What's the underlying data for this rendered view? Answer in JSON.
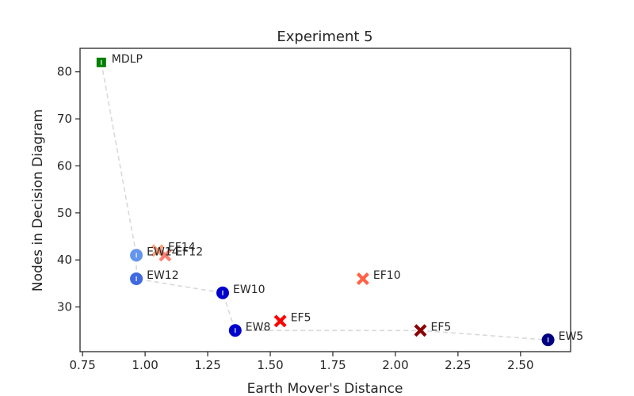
{
  "chart_data": {
    "type": "scatter",
    "title": "Experiment 5",
    "xlabel": "Earth Mover's Distance",
    "ylabel": "Nodes in Decision Diagram",
    "xlim": [
      0.74,
      2.7
    ],
    "ylim": [
      20.5,
      85
    ],
    "xticks": [
      "0.75",
      "1.00",
      "1.25",
      "1.50",
      "1.75",
      "2.00",
      "2.25",
      "2.50"
    ],
    "xtick_values": [
      0.75,
      1.0,
      1.25,
      1.5,
      1.75,
      2.0,
      2.25,
      2.5
    ],
    "yticks": [
      "30",
      "40",
      "50",
      "60",
      "70",
      "80"
    ],
    "ytick_values": [
      30,
      40,
      50,
      60,
      70,
      80
    ],
    "grid": false,
    "frontier_color": "#d9d9d9",
    "frontier": [
      {
        "x": 0.825,
        "y": 82
      },
      {
        "x": 0.965,
        "y": 41
      },
      {
        "x": 0.965,
        "y": 36
      },
      {
        "x": 1.31,
        "y": 33
      },
      {
        "x": 1.36,
        "y": 25
      },
      {
        "x": 2.1,
        "y": 25
      },
      {
        "x": 2.61,
        "y": 23
      }
    ],
    "points": [
      {
        "label": "MDLP",
        "x": 0.825,
        "y": 82,
        "marker": "square",
        "color": "#008000"
      },
      {
        "label": "EF14",
        "x": 1.05,
        "y": 42,
        "marker": "x",
        "color": "#ffa07a"
      },
      {
        "label": "EF12",
        "x": 1.08,
        "y": 41,
        "marker": "x",
        "color": "#fa8072"
      },
      {
        "label": "EF10",
        "x": 1.87,
        "y": 36,
        "marker": "x",
        "color": "#ff6347"
      },
      {
        "label": "EF5",
        "x": 1.54,
        "y": 27,
        "marker": "x",
        "color": "#ff0000"
      },
      {
        "label": "EF5",
        "x": 2.1,
        "y": 25,
        "marker": "x",
        "color": "#8b0000"
      },
      {
        "label": "EW14",
        "x": 0.965,
        "y": 41,
        "marker": "circle",
        "color": "#6495ed"
      },
      {
        "label": "EW12",
        "x": 0.965,
        "y": 36,
        "marker": "circle",
        "color": "#4169e1"
      },
      {
        "label": "EW10",
        "x": 1.31,
        "y": 33,
        "marker": "circle",
        "color": "#0000cd"
      },
      {
        "label": "EW8",
        "x": 1.36,
        "y": 25,
        "marker": "circle",
        "color": "#0000cd"
      },
      {
        "label": "EW5",
        "x": 2.61,
        "y": 23,
        "marker": "circle",
        "color": "#000080"
      }
    ]
  }
}
